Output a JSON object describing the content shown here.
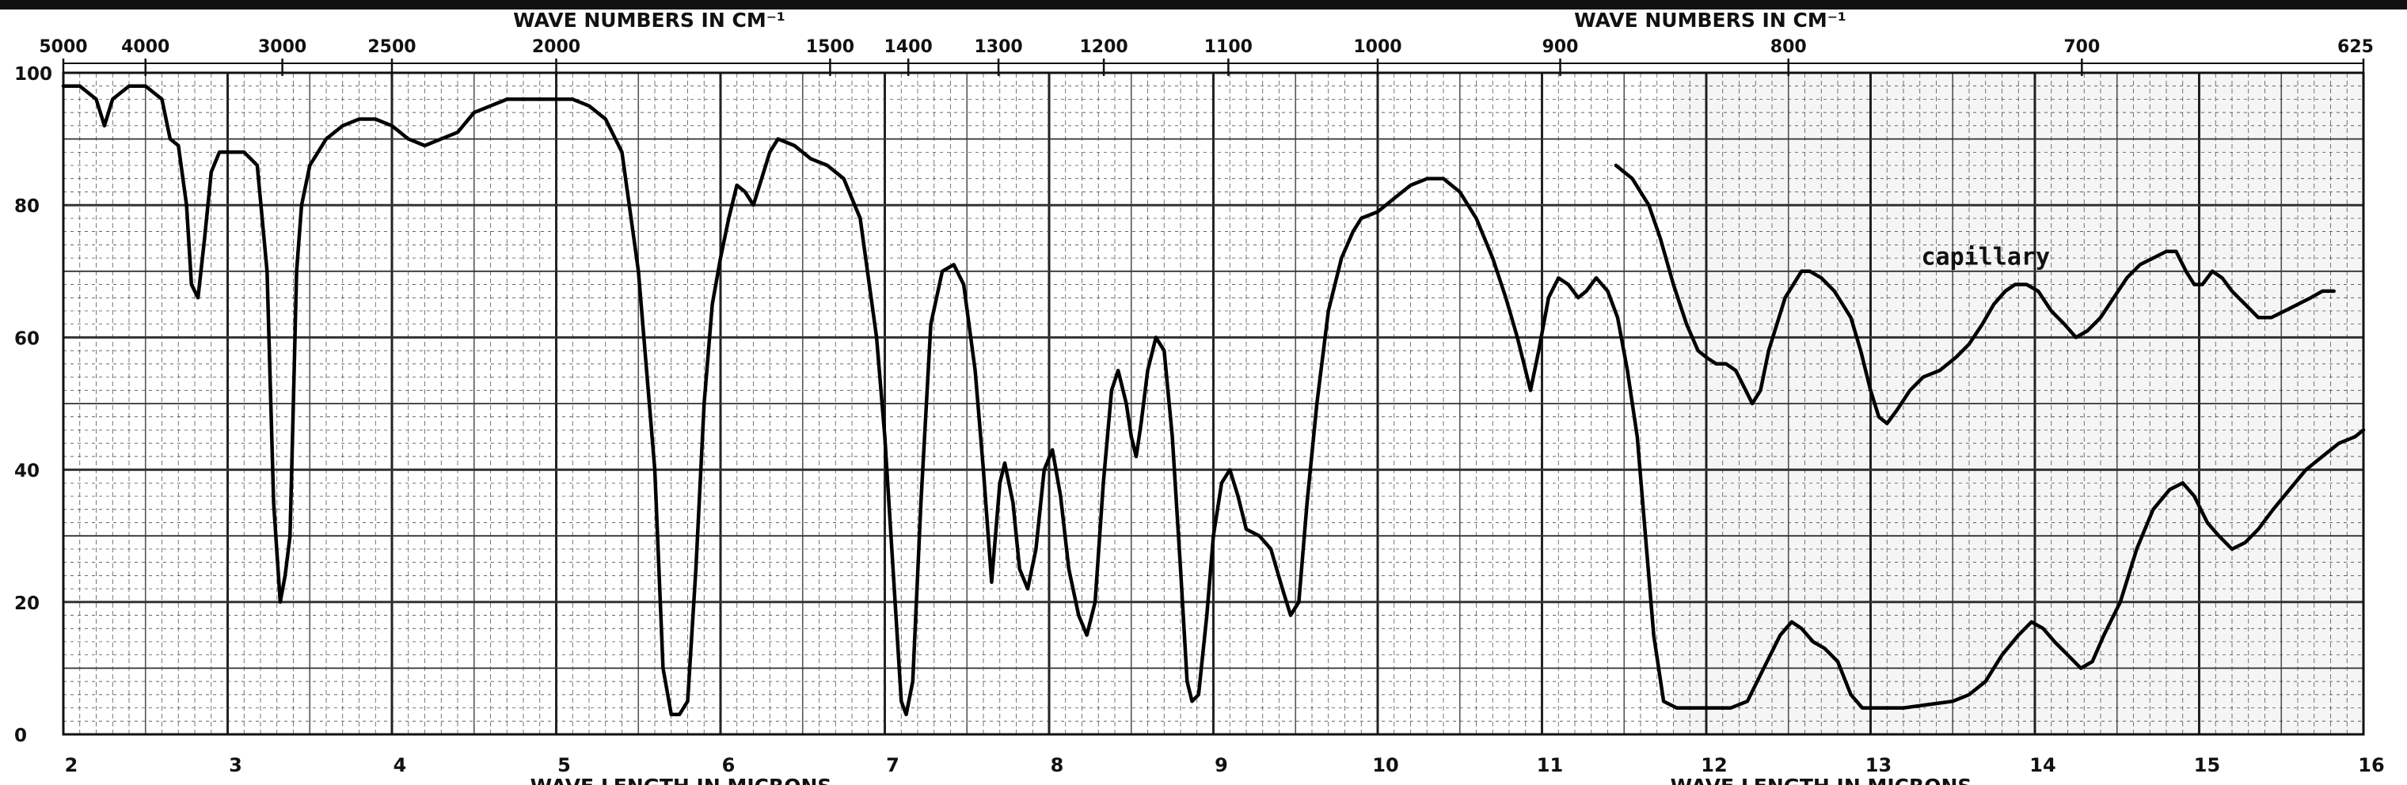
{
  "chart_data": {
    "type": "line",
    "title": "",
    "top_axis_label": "WAVE NUMBERS IN CM⁻¹",
    "bottom_axis_label": "WAVE LENGTH IN MICRONS",
    "xlabel": "WAVE LENGTH IN MICRONS",
    "ylabel": "",
    "xlim": [
      2,
      16
    ],
    "ylim": [
      0,
      100
    ],
    "grid": true,
    "x_ticks": [
      "2",
      "3",
      "4",
      "5",
      "6",
      "7",
      "8",
      "9",
      "10",
      "11",
      "12",
      "13",
      "14",
      "15",
      "16"
    ],
    "y_ticks": [
      "0",
      "20",
      "40",
      "60",
      "80",
      "100"
    ],
    "top_ticks": [
      {
        "label": "5000",
        "x": 2.0
      },
      {
        "label": "4000",
        "x": 2.5
      },
      {
        "label": "3000",
        "x": 3.333
      },
      {
        "label": "2500",
        "x": 4.0
      },
      {
        "label": "2000",
        "x": 5.0
      },
      {
        "label": "1500",
        "x": 6.667
      },
      {
        "label": "1400",
        "x": 7.143
      },
      {
        "label": "1300",
        "x": 7.692
      },
      {
        "label": "1200",
        "x": 8.333
      },
      {
        "label": "1100",
        "x": 9.091
      },
      {
        "label": "1000",
        "x": 10.0
      },
      {
        "label": "900",
        "x": 11.111
      },
      {
        "label": "800",
        "x": 12.5
      },
      {
        "label": "700",
        "x": 14.286
      },
      {
        "label": "625",
        "x": 16.0
      }
    ],
    "annotations": [
      {
        "text": "capillary",
        "x": 13.7,
        "y": 71
      }
    ],
    "series": [
      {
        "points": [
          [
            2.0,
            98
          ],
          [
            2.1,
            98
          ],
          [
            2.2,
            96
          ],
          [
            2.25,
            92
          ],
          [
            2.3,
            96
          ],
          [
            2.4,
            98
          ],
          [
            2.5,
            98
          ],
          [
            2.6,
            96
          ],
          [
            2.65,
            90
          ],
          [
            2.7,
            89
          ],
          [
            2.75,
            80
          ],
          [
            2.78,
            68
          ],
          [
            2.82,
            66
          ],
          [
            2.86,
            75
          ],
          [
            2.9,
            85
          ],
          [
            2.95,
            88
          ],
          [
            3.0,
            88
          ],
          [
            3.1,
            88
          ],
          [
            3.18,
            86
          ],
          [
            3.24,
            70
          ],
          [
            3.28,
            35
          ],
          [
            3.32,
            20
          ],
          [
            3.35,
            24
          ],
          [
            3.38,
            30
          ],
          [
            3.4,
            50
          ],
          [
            3.42,
            70
          ],
          [
            3.45,
            80
          ],
          [
            3.5,
            86
          ],
          [
            3.6,
            90
          ],
          [
            3.7,
            92
          ],
          [
            3.8,
            93
          ],
          [
            3.9,
            93
          ],
          [
            4.0,
            92
          ],
          [
            4.1,
            90
          ],
          [
            4.2,
            89
          ],
          [
            4.3,
            90
          ],
          [
            4.4,
            91
          ],
          [
            4.5,
            94
          ],
          [
            4.6,
            95
          ],
          [
            4.7,
            96
          ],
          [
            4.8,
            96
          ],
          [
            4.9,
            96
          ],
          [
            5.0,
            96
          ],
          [
            5.1,
            96
          ],
          [
            5.2,
            95
          ],
          [
            5.3,
            93
          ],
          [
            5.4,
            88
          ],
          [
            5.5,
            70
          ],
          [
            5.6,
            40
          ],
          [
            5.65,
            10
          ],
          [
            5.7,
            3
          ],
          [
            5.75,
            3
          ],
          [
            5.8,
            5
          ],
          [
            5.85,
            25
          ],
          [
            5.9,
            50
          ],
          [
            5.95,
            65
          ],
          [
            6.0,
            72
          ],
          [
            6.05,
            78
          ],
          [
            6.1,
            83
          ],
          [
            6.15,
            82
          ],
          [
            6.2,
            80
          ],
          [
            6.25,
            84
          ],
          [
            6.3,
            88
          ],
          [
            6.35,
            90
          ],
          [
            6.45,
            89
          ],
          [
            6.55,
            87
          ],
          [
            6.65,
            86
          ],
          [
            6.75,
            84
          ],
          [
            6.85,
            78
          ],
          [
            6.95,
            60
          ],
          [
            7.0,
            45
          ],
          [
            7.05,
            25
          ],
          [
            7.1,
            5
          ],
          [
            7.13,
            3
          ],
          [
            7.17,
            8
          ],
          [
            7.22,
            35
          ],
          [
            7.28,
            62
          ],
          [
            7.35,
            70
          ],
          [
            7.42,
            71
          ],
          [
            7.48,
            68
          ],
          [
            7.55,
            55
          ],
          [
            7.6,
            40
          ],
          [
            7.65,
            23
          ],
          [
            7.7,
            38
          ],
          [
            7.73,
            41
          ],
          [
            7.78,
            35
          ],
          [
            7.82,
            25
          ],
          [
            7.87,
            22
          ],
          [
            7.92,
            28
          ],
          [
            7.97,
            40
          ],
          [
            8.02,
            43
          ],
          [
            8.07,
            36
          ],
          [
            8.12,
            25
          ],
          [
            8.18,
            18
          ],
          [
            8.23,
            15
          ],
          [
            8.28,
            20
          ],
          [
            8.33,
            38
          ],
          [
            8.38,
            52
          ],
          [
            8.42,
            55
          ],
          [
            8.47,
            50
          ],
          [
            8.5,
            45
          ],
          [
            8.53,
            42
          ],
          [
            8.56,
            47
          ],
          [
            8.6,
            55
          ],
          [
            8.65,
            60
          ],
          [
            8.7,
            58
          ],
          [
            8.75,
            45
          ],
          [
            8.8,
            25
          ],
          [
            8.84,
            8
          ],
          [
            8.87,
            5
          ],
          [
            8.91,
            6
          ],
          [
            8.96,
            18
          ],
          [
            9.0,
            30
          ],
          [
            9.05,
            38
          ],
          [
            9.1,
            40
          ],
          [
            9.15,
            36
          ],
          [
            9.2,
            31
          ],
          [
            9.28,
            30
          ],
          [
            9.35,
            28
          ],
          [
            9.42,
            22
          ],
          [
            9.47,
            18
          ],
          [
            9.52,
            20
          ],
          [
            9.57,
            35
          ],
          [
            9.63,
            50
          ],
          [
            9.7,
            64
          ],
          [
            9.78,
            72
          ],
          [
            9.85,
            76
          ],
          [
            9.9,
            78
          ],
          [
            10.0,
            79
          ],
          [
            10.1,
            81
          ],
          [
            10.2,
            83
          ],
          [
            10.3,
            84
          ],
          [
            10.4,
            84
          ],
          [
            10.5,
            82
          ],
          [
            10.6,
            78
          ],
          [
            10.7,
            72
          ],
          [
            10.78,
            66
          ],
          [
            10.85,
            60
          ],
          [
            10.9,
            55
          ],
          [
            10.93,
            52
          ],
          [
            10.98,
            58
          ],
          [
            11.04,
            66
          ],
          [
            11.1,
            69
          ],
          [
            11.16,
            68
          ],
          [
            11.22,
            66
          ],
          [
            11.27,
            67
          ],
          [
            11.33,
            69
          ],
          [
            11.4,
            67
          ],
          [
            11.46,
            63
          ],
          [
            11.52,
            55
          ],
          [
            11.58,
            45
          ],
          [
            11.63,
            30
          ],
          [
            11.68,
            15
          ],
          [
            11.74,
            5
          ],
          [
            11.82,
            4
          ],
          [
            11.92,
            4
          ],
          [
            12.0,
            4
          ],
          [
            12.08,
            4
          ],
          [
            12.15,
            4
          ],
          [
            12.25,
            5
          ],
          [
            12.35,
            10
          ],
          [
            12.45,
            15
          ],
          [
            12.52,
            17
          ],
          [
            12.58,
            16
          ],
          [
            12.65,
            14
          ],
          [
            12.72,
            13
          ],
          [
            12.8,
            11
          ],
          [
            12.88,
            6
          ],
          [
            12.95,
            4
          ],
          [
            13.05,
            4
          ],
          [
            13.2,
            4
          ],
          [
            13.35,
            4.5
          ],
          [
            13.5,
            5
          ],
          [
            13.6,
            6
          ],
          [
            13.7,
            8
          ],
          [
            13.8,
            12
          ],
          [
            13.9,
            15
          ],
          [
            13.98,
            17
          ],
          [
            14.05,
            16
          ],
          [
            14.12,
            14
          ],
          [
            14.2,
            12
          ],
          [
            14.28,
            10
          ],
          [
            14.35,
            11
          ],
          [
            14.42,
            15
          ],
          [
            14.52,
            20
          ],
          [
            14.62,
            28
          ],
          [
            14.72,
            34
          ],
          [
            14.82,
            37
          ],
          [
            14.9,
            38
          ],
          [
            14.97,
            36
          ],
          [
            15.05,
            32
          ],
          [
            15.12,
            30
          ],
          [
            15.2,
            28
          ],
          [
            15.28,
            29
          ],
          [
            15.36,
            31
          ],
          [
            15.45,
            34
          ],
          [
            15.55,
            37
          ],
          [
            15.65,
            40
          ],
          [
            15.75,
            42
          ],
          [
            15.85,
            44
          ],
          [
            15.95,
            45
          ],
          [
            16.0,
            46
          ]
        ]
      },
      {
        "points": [
          [
            11.45,
            86
          ],
          [
            11.55,
            84
          ],
          [
            11.65,
            80
          ],
          [
            11.72,
            75
          ],
          [
            11.8,
            68
          ],
          [
            11.88,
            62
          ],
          [
            11.95,
            58
          ],
          [
            12.0,
            57
          ],
          [
            12.06,
            56
          ],
          [
            12.12,
            56
          ],
          [
            12.18,
            55
          ],
          [
            12.24,
            52
          ],
          [
            12.28,
            50
          ],
          [
            12.33,
            52
          ],
          [
            12.38,
            58
          ],
          [
            12.43,
            62
          ],
          [
            12.48,
            66
          ],
          [
            12.53,
            68
          ],
          [
            12.58,
            70
          ],
          [
            12.63,
            70
          ],
          [
            12.7,
            69
          ],
          [
            12.78,
            67
          ],
          [
            12.88,
            63
          ],
          [
            12.94,
            58
          ],
          [
            13.0,
            52
          ],
          [
            13.05,
            48
          ],
          [
            13.1,
            47
          ],
          [
            13.16,
            49
          ],
          [
            13.24,
            52
          ],
          [
            13.32,
            54
          ],
          [
            13.42,
            55
          ],
          [
            13.52,
            57
          ],
          [
            13.6,
            59
          ],
          [
            13.68,
            62
          ],
          [
            13.75,
            65
          ],
          [
            13.82,
            67
          ],
          [
            13.88,
            68
          ],
          [
            13.95,
            68
          ],
          [
            14.02,
            67
          ],
          [
            14.1,
            64
          ],
          [
            14.18,
            62
          ],
          [
            14.25,
            60
          ],
          [
            14.32,
            61
          ],
          [
            14.4,
            63
          ],
          [
            14.48,
            66
          ],
          [
            14.56,
            69
          ],
          [
            14.64,
            71
          ],
          [
            14.72,
            72
          ],
          [
            14.8,
            73
          ],
          [
            14.86,
            73
          ],
          [
            14.92,
            70
          ],
          [
            14.97,
            68
          ],
          [
            15.02,
            68
          ],
          [
            15.08,
            70
          ],
          [
            15.14,
            69
          ],
          [
            15.2,
            67
          ],
          [
            15.28,
            65
          ],
          [
            15.36,
            63
          ],
          [
            15.44,
            63
          ],
          [
            15.52,
            64
          ],
          [
            15.6,
            65
          ],
          [
            15.68,
            66
          ],
          [
            15.75,
            67
          ],
          [
            15.82,
            67
          ]
        ]
      }
    ]
  }
}
